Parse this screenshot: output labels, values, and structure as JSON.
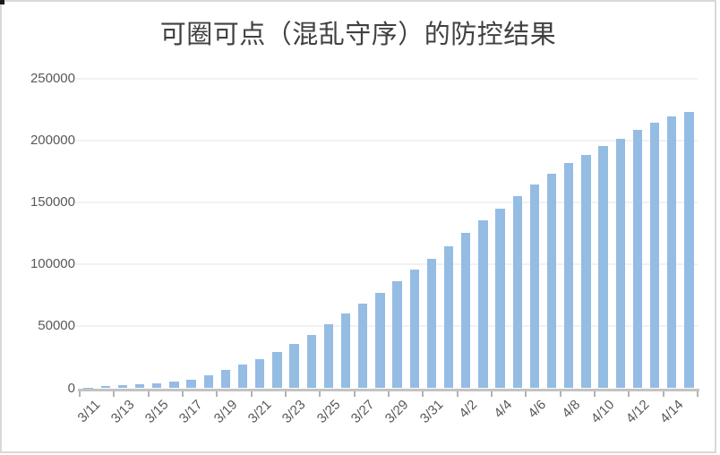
{
  "window": {
    "background": "#ffffff",
    "frame_border_color": "#d9d9d9",
    "corner_mark_color": "#1a1a1a"
  },
  "chart_data": {
    "type": "bar",
    "title": "可圈可点（混乱守序）的防控结果",
    "xlabel": "",
    "ylabel": "",
    "ylim": [
      0,
      250000
    ],
    "y_ticks": [
      0,
      50000,
      100000,
      150000,
      200000,
      250000
    ],
    "grid": true,
    "legend": false,
    "x": [
      "3/11",
      "3/12",
      "3/13",
      "3/14",
      "3/15",
      "3/16",
      "3/17",
      "3/18",
      "3/19",
      "3/20",
      "3/21",
      "3/22",
      "3/23",
      "3/24",
      "3/25",
      "3/26",
      "3/27",
      "3/28",
      "3/29",
      "3/30",
      "3/31",
      "4/1",
      "4/2",
      "4/3",
      "4/4",
      "4/5",
      "4/6",
      "4/7",
      "4/8",
      "4/9",
      "4/10",
      "4/11",
      "4/12",
      "4/13",
      "4/14",
      "4/15"
    ],
    "values": [
      400,
      1500,
      2500,
      3200,
      3900,
      5300,
      7000,
      10500,
      14500,
      19000,
      23500,
      29000,
      35500,
      42800,
      51500,
      60000,
      68400,
      77000,
      86600,
      95700,
      104500,
      114400,
      125600,
      135400,
      145200,
      155200,
      164400,
      173000,
      181500,
      188300,
      195700,
      201500,
      208500,
      214500,
      219000,
      223000
    ],
    "x_tick_labels": [
      "3/11",
      "3/13",
      "3/15",
      "3/17",
      "3/19",
      "3/21",
      "3/23",
      "3/25",
      "3/27",
      "3/29",
      "3/31",
      "4/2",
      "4/4",
      "4/6",
      "4/8",
      "4/10",
      "4/12",
      "4/14"
    ],
    "style": {
      "bar_color": "#95bce3",
      "title_color": "#404040",
      "axis_label_color": "#595959",
      "gridline_color": "#f2f2f2",
      "axis_line_color": "#c3c3c3"
    }
  }
}
